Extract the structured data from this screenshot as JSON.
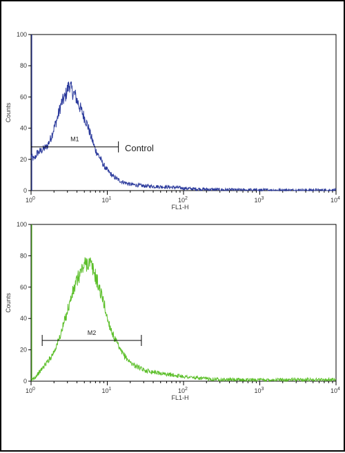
{
  "chart_data": [
    {
      "type": "line",
      "title": "",
      "xlabel": "FL1-H",
      "ylabel": "Counts",
      "x_scale": "log",
      "xlim": [
        1,
        10000
      ],
      "ylim": [
        0,
        100
      ],
      "x_ticks": [
        {
          "base": "10",
          "exp": "0"
        },
        {
          "base": "10",
          "exp": "1"
        },
        {
          "base": "10",
          "exp": "2"
        },
        {
          "base": "10",
          "exp": "3"
        },
        {
          "base": "10",
          "exp": "4"
        }
      ],
      "y_ticks": [
        "0",
        "20",
        "40",
        "60",
        "80",
        "100"
      ],
      "grid": false,
      "series": [
        {
          "color": "#2b3a9c",
          "x": [
            1.0,
            1.1,
            1.2,
            1.4,
            1.6,
            1.8,
            2.0,
            2.2,
            2.5,
            2.8,
            3.0,
            3.2,
            3.5,
            3.8,
            4.0,
            4.5,
            5.0,
            5.5,
            6.0,
            7.0,
            8.0,
            9.0,
            10.0,
            12.0,
            15.0,
            20.0,
            30.0,
            50.0,
            80.0,
            100.0,
            150.0,
            200.0,
            300.0,
            1000.0,
            10000.0
          ],
          "y": [
            22,
            20,
            24,
            26,
            28,
            33,
            40,
            46,
            56,
            60,
            65,
            68,
            63,
            61,
            58,
            52,
            47,
            42,
            36,
            26,
            21,
            16,
            13,
            9,
            6,
            4,
            3,
            2.5,
            2,
            1.5,
            1,
            0.8,
            0.5,
            0.3,
            0.2
          ]
        }
      ],
      "markers": [
        {
          "label": "M1",
          "x_start": 1.0,
          "x_end": 14.0,
          "y": 28
        }
      ],
      "annotations": [
        {
          "text": "Control",
          "x": 17,
          "y": 27
        }
      ]
    },
    {
      "type": "line",
      "title": "",
      "xlabel": "FL1-H",
      "ylabel": "Counts",
      "x_scale": "log",
      "xlim": [
        1,
        10000
      ],
      "ylim": [
        0,
        100
      ],
      "x_ticks": [
        {
          "base": "10",
          "exp": "0"
        },
        {
          "base": "10",
          "exp": "1"
        },
        {
          "base": "10",
          "exp": "2"
        },
        {
          "base": "10",
          "exp": "3"
        },
        {
          "base": "10",
          "exp": "4"
        }
      ],
      "y_ticks": [
        "0",
        "20",
        "40",
        "60",
        "80",
        "100"
      ],
      "grid": false,
      "series": [
        {
          "color": "#5cbf2a",
          "x": [
            1.0,
            1.1,
            1.3,
            1.5,
            1.8,
            2.0,
            2.3,
            2.6,
            3.0,
            3.5,
            4.0,
            4.5,
            5.0,
            5.5,
            6.0,
            6.5,
            7.0,
            8.0,
            9.0,
            10.0,
            12.0,
            15.0,
            20.0,
            25.0,
            30.0,
            40.0,
            50.0,
            70.0,
            100.0,
            150.0,
            200.0,
            400.0,
            1000.0,
            3000.0,
            10000.0
          ],
          "y": [
            1,
            2,
            6,
            10,
            15,
            19,
            26,
            34,
            45,
            56,
            64,
            70,
            74,
            76,
            75,
            71,
            67,
            58,
            50,
            40,
            29,
            19,
            12,
            9,
            7,
            6,
            5,
            4,
            3,
            2,
            1.5,
            1,
            0.8,
            1,
            1
          ]
        }
      ],
      "markers": [
        {
          "label": "M2",
          "x_start": 1.4,
          "x_end": 28.0,
          "y": 26
        }
      ],
      "annotations": []
    }
  ]
}
